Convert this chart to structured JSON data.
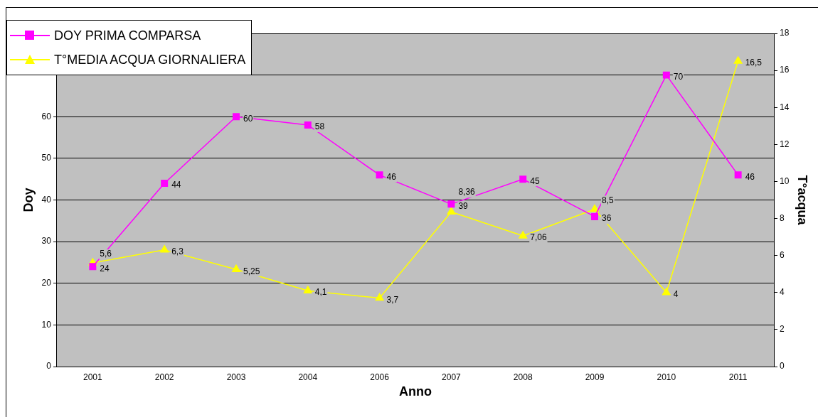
{
  "chart_data": {
    "type": "line",
    "xlabel": "Anno",
    "ylabel": "Doy",
    "y2label": "T°acqua",
    "categories": [
      "2001",
      "2002",
      "2003",
      "2004",
      "2006",
      "2007",
      "2008",
      "2009",
      "2010",
      "2011"
    ],
    "series": [
      {
        "name": "DOY PRIMA COMPARSA",
        "color": "#ff00ff",
        "marker": "square",
        "values": [
          24,
          44,
          60,
          58,
          46,
          39,
          45,
          36,
          70,
          46
        ],
        "value_labels": [
          "24",
          "44",
          "60",
          "58",
          "46",
          "39",
          "45",
          "36",
          "70",
          "46"
        ]
      },
      {
        "name": "T°MEDIA ACQUA GIORNALIERA",
        "color": "#ffff00",
        "marker": "triangle",
        "axis": "y2",
        "values": [
          5.6,
          6.3,
          5.25,
          4.1,
          3.7,
          8.36,
          7.06,
          8.5,
          4,
          16.5
        ],
        "value_labels": [
          "5,6",
          "6,3",
          "5,25",
          "4,1",
          "3,7",
          "8,36",
          "7,06",
          "8,5",
          "4",
          "16,5"
        ]
      }
    ],
    "ylim": [
      0,
      80
    ],
    "yticks": [
      0,
      10,
      20,
      30,
      40,
      50,
      60,
      {
        "value": 70,
        "label": null
      },
      {
        "value": 80,
        "label": null
      }
    ],
    "y2lim": [
      0,
      18
    ],
    "y2ticks": [
      0,
      2,
      4,
      6,
      8,
      10,
      12,
      14,
      16,
      18
    ],
    "grid": "y",
    "legend": "top left",
    "line_style": "solid"
  }
}
